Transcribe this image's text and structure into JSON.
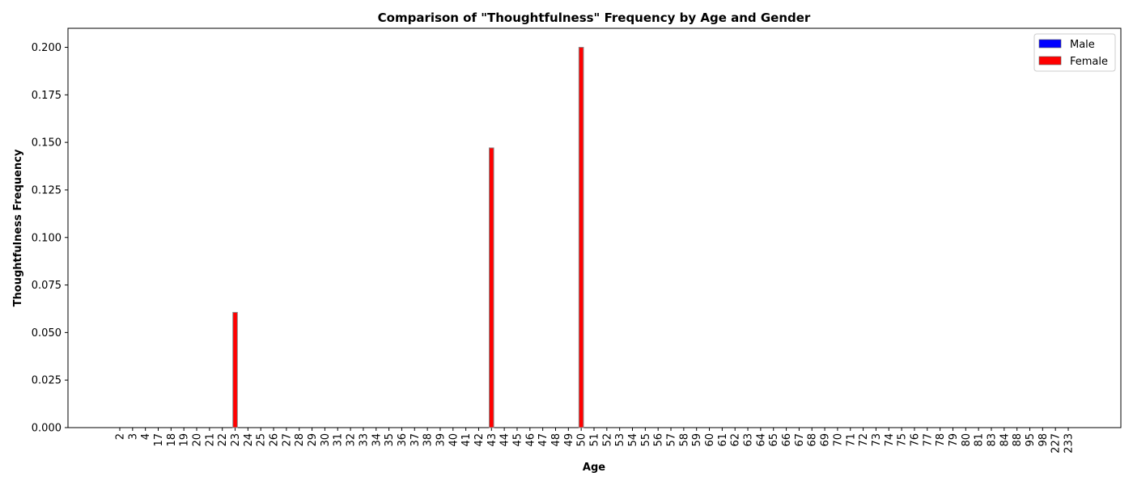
{
  "chart_data": {
    "type": "bar",
    "title": "Comparison of \"Thoughtfulness\" Frequency by Age and Gender",
    "xlabel": "Age",
    "ylabel": "Thoughtfulness Frequency",
    "ylim": [
      0,
      0.21
    ],
    "yticks": [
      "0.000",
      "0.025",
      "0.050",
      "0.075",
      "0.100",
      "0.125",
      "0.150",
      "0.175",
      "0.200"
    ],
    "categories": [
      "2",
      "3",
      "4",
      "17",
      "18",
      "19",
      "20",
      "21",
      "22",
      "23",
      "24",
      "25",
      "26",
      "27",
      "28",
      "29",
      "30",
      "31",
      "32",
      "33",
      "34",
      "35",
      "36",
      "37",
      "38",
      "39",
      "40",
      "41",
      "42",
      "43",
      "44",
      "45",
      "46",
      "47",
      "48",
      "49",
      "50",
      "51",
      "52",
      "53",
      "54",
      "55",
      "56",
      "57",
      "58",
      "59",
      "60",
      "61",
      "62",
      "63",
      "64",
      "65",
      "66",
      "67",
      "68",
      "69",
      "70",
      "71",
      "72",
      "73",
      "74",
      "75",
      "76",
      "77",
      "78",
      "79",
      "80",
      "81",
      "83",
      "84",
      "88",
      "95",
      "98",
      "227",
      "233"
    ],
    "series": [
      {
        "name": "Male",
        "color": "#0000ff",
        "values": [
          0,
          0,
          0,
          0,
          0,
          0,
          0,
          0,
          0,
          0,
          0,
          0,
          0,
          0,
          0,
          0,
          0,
          0,
          0,
          0,
          0,
          0,
          0,
          0,
          0,
          0,
          0,
          0,
          0,
          0,
          0,
          0,
          0,
          0,
          0,
          0,
          0,
          0,
          0,
          0,
          0,
          0,
          0,
          0,
          0,
          0,
          0,
          0,
          0,
          0,
          0,
          0,
          0,
          0,
          0,
          0,
          0,
          0,
          0,
          0,
          0,
          0,
          0,
          0,
          0,
          0,
          0,
          0,
          0,
          0,
          0,
          0,
          0,
          0,
          0
        ]
      },
      {
        "name": "Female",
        "color": "#ff0000",
        "values": [
          0,
          0,
          0,
          0,
          0,
          0,
          0,
          0,
          0,
          0.0606,
          0,
          0,
          0,
          0,
          0,
          0,
          0,
          0,
          0,
          0,
          0,
          0,
          0,
          0,
          0,
          0,
          0,
          0,
          0,
          0.1471,
          0,
          0,
          0,
          0,
          0,
          0,
          0.2,
          0,
          0,
          0,
          0,
          0,
          0,
          0,
          0,
          0,
          0,
          0,
          0,
          0,
          0,
          0,
          0,
          0,
          0,
          0,
          0,
          0,
          0,
          0,
          0,
          0,
          0,
          0,
          0,
          0,
          0,
          0,
          0,
          0,
          0,
          0,
          0,
          0,
          0
        ]
      }
    ],
    "grid": false,
    "legend_position": "top-right"
  }
}
